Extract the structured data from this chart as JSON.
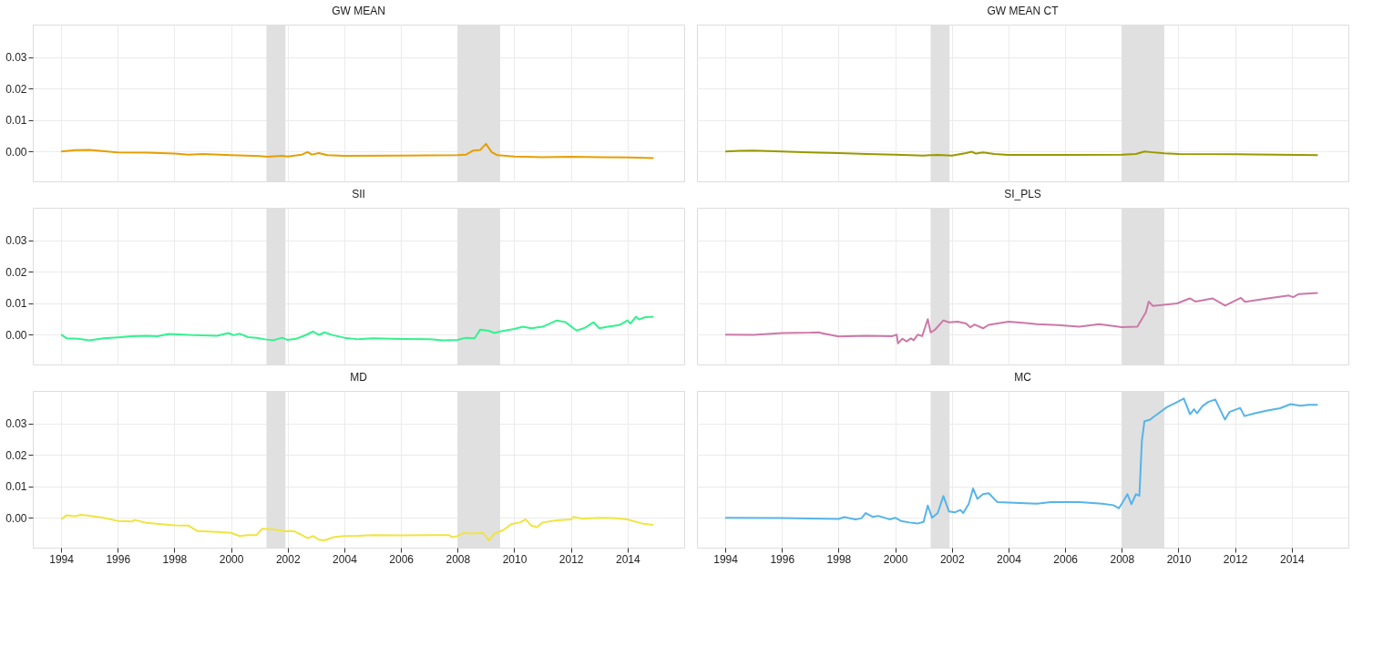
{
  "chart_data": [
    {
      "type": "line",
      "title": "GW MEAN",
      "xlim": [
        1993,
        2016
      ],
      "ylim": [
        -0.0095,
        0.0403
      ],
      "xticks": [
        1994,
        1996,
        1998,
        2000,
        2002,
        2004,
        2006,
        2008,
        2010,
        2012,
        2014
      ],
      "yticks": [
        {
          "value": 0,
          "label": "0.00"
        },
        {
          "value": 0.01,
          "label": "0.01"
        },
        {
          "value": 0.02,
          "label": "0.02"
        },
        {
          "value": 0.03,
          "label": "0.03"
        }
      ],
      "grid": true,
      "tick_labels": "y",
      "bands": [
        {
          "axis": "x",
          "from": 2001.25,
          "to": 2001.92,
          "color": "#e0e0e0"
        },
        {
          "axis": "x",
          "from": 2008.0,
          "to": 2009.5,
          "color": "#e0e0e0"
        }
      ],
      "x": [
        1994,
        1994.5,
        1995,
        1996,
        1997,
        1998,
        1998.5,
        1999,
        2000,
        2001,
        2001.3,
        2001.8,
        2002,
        2002.5,
        2002.7,
        2002.85,
        2003.1,
        2003.4,
        2004,
        2006,
        2008,
        2008.3,
        2008.55,
        2008.8,
        2009.0,
        2009.2,
        2009.4,
        2010,
        2011,
        2012,
        2013,
        2014,
        2014.92
      ],
      "series": [
        {
          "color": "#e69f00",
          "values": [
            0,
            0.0004,
            0.0005,
            -0.0003,
            -0.0004,
            -0.0007,
            -0.001,
            -0.0008,
            -0.0012,
            -0.0015,
            -0.0017,
            -0.0014,
            -0.0016,
            -0.001,
            -0.0002,
            -0.001,
            -0.0005,
            -0.0012,
            -0.0014,
            -0.0013,
            -0.0012,
            -0.001,
            0.0003,
            0.0005,
            0.0024,
            -0.0002,
            -0.0012,
            -0.0016,
            -0.0018,
            -0.0017,
            -0.0018,
            -0.0019,
            -0.0021
          ]
        }
      ]
    },
    {
      "type": "line",
      "title": "GW MEAN CT",
      "xlim": [
        1993,
        2016
      ],
      "ylim": [
        -0.0095,
        0.0403
      ],
      "xticks": [
        1994,
        1996,
        1998,
        2000,
        2002,
        2004,
        2006,
        2008,
        2010,
        2012,
        2014
      ],
      "yticks": [
        {
          "value": 0,
          "label": null
        },
        {
          "value": 0.01,
          "label": null
        },
        {
          "value": 0.02,
          "label": null
        },
        {
          "value": 0.03,
          "label": null
        }
      ],
      "grid": true,
      "tick_labels": false,
      "bands": [
        {
          "axis": "x",
          "from": 2001.25,
          "to": 2001.92,
          "color": "#e0e0e0"
        },
        {
          "axis": "x",
          "from": 2008.0,
          "to": 2009.5,
          "color": "#e0e0e0"
        }
      ],
      "x": [
        1994,
        1994.5,
        1995,
        1996,
        1997,
        1998,
        1999,
        2000,
        2001,
        2001.5,
        2002,
        2002.5,
        2002.7,
        2002.85,
        2003.1,
        2003.5,
        2004,
        2006,
        2008,
        2008.5,
        2008.8,
        2009.0,
        2009.5,
        2010,
        2012,
        2014.92
      ],
      "series": [
        {
          "color": "#999900",
          "values": [
            0,
            0.0002,
            0.0003,
            0,
            -0.0003,
            -0.0005,
            -0.0008,
            -0.001,
            -0.0013,
            -0.0011,
            -0.0013,
            -0.0005,
            -0.0001,
            -0.0007,
            -0.0003,
            -0.0008,
            -0.0011,
            -0.0011,
            -0.001,
            -0.0008,
            0,
            -0.0002,
            -0.0006,
            -0.0008,
            -0.0009,
            -0.0012
          ]
        }
      ]
    },
    {
      "type": "line",
      "title": "SII",
      "xlim": [
        1993,
        2016
      ],
      "ylim": [
        -0.0095,
        0.0403
      ],
      "xticks": [
        1994,
        1996,
        1998,
        2000,
        2002,
        2004,
        2006,
        2008,
        2010,
        2012,
        2014
      ],
      "yticks": [
        {
          "value": 0,
          "label": "0.00"
        },
        {
          "value": 0.01,
          "label": "0.01"
        },
        {
          "value": 0.02,
          "label": "0.02"
        },
        {
          "value": 0.03,
          "label": "0.03"
        }
      ],
      "grid": true,
      "tick_labels": "y",
      "bands": [
        {
          "axis": "x",
          "from": 2001.25,
          "to": 2001.92,
          "color": "#e0e0e0"
        },
        {
          "axis": "x",
          "from": 2008.0,
          "to": 2009.5,
          "color": "#e0e0e0"
        }
      ],
      "x": [
        1994,
        1994.2,
        1994.6,
        1995,
        1995.5,
        1996,
        1996.5,
        1997,
        1997.4,
        1997.8,
        1998.5,
        1999,
        1999.5,
        1999.9,
        2000.1,
        2000.3,
        2000.6,
        2000.9,
        2001.2,
        2001.5,
        2001.8,
        2002.0,
        2002.3,
        2002.6,
        2002.9,
        2003.1,
        2003.3,
        2003.6,
        2004,
        2004.5,
        2005,
        2006,
        2007,
        2007.5,
        2008,
        2008.3,
        2008.6,
        2008.8,
        2009.1,
        2009.3,
        2009.5,
        2010,
        2010.3,
        2010.6,
        2011,
        2011.5,
        2011.8,
        2012.2,
        2012.5,
        2012.8,
        2013.0,
        2013.3,
        2013.7,
        2014,
        2014.1,
        2014.3,
        2014.4,
        2014.6,
        2014.92
      ],
      "series": [
        {
          "color": "#33f28f",
          "values": [
            0,
            -0.0012,
            -0.0013,
            -0.0018,
            -0.0012,
            -0.0009,
            -0.0005,
            -0.0004,
            -0.0005,
            0.0002,
            -0.0001,
            -0.0002,
            -0.0004,
            0.0005,
            -0.0002,
            0.0003,
            -0.0008,
            -0.001,
            -0.0015,
            -0.0018,
            -0.001,
            -0.0017,
            -0.0013,
            -0.0003,
            0.001,
            -0.0001,
            0.0007,
            -0.0002,
            -0.001,
            -0.0015,
            -0.0012,
            -0.0014,
            -0.0015,
            -0.0018,
            -0.0017,
            -0.001,
            -0.0012,
            0.0016,
            0.0012,
            0.0005,
            0.001,
            0.0018,
            0.0025,
            0.002,
            0.0025,
            0.0045,
            0.004,
            0.0013,
            0.0022,
            0.0039,
            0.002,
            0.0025,
            0.003,
            0.0045,
            0.0035,
            0.0057,
            0.0048,
            0.0055,
            0.0057
          ]
        }
      ]
    },
    {
      "type": "line",
      "title": "SI_PLS",
      "xlim": [
        1993,
        2016
      ],
      "ylim": [
        -0.0095,
        0.0403
      ],
      "xticks": [
        1994,
        1996,
        1998,
        2000,
        2002,
        2004,
        2006,
        2008,
        2010,
        2012,
        2014
      ],
      "yticks": [
        {
          "value": 0,
          "label": null
        },
        {
          "value": 0.01,
          "label": null
        },
        {
          "value": 0.02,
          "label": null
        },
        {
          "value": 0.03,
          "label": null
        }
      ],
      "grid": true,
      "tick_labels": false,
      "bands": [
        {
          "axis": "x",
          "from": 2001.25,
          "to": 2001.92,
          "color": "#e0e0e0"
        },
        {
          "axis": "x",
          "from": 2008.0,
          "to": 2009.5,
          "color": "#e0e0e0"
        }
      ],
      "x": [
        1994,
        1995,
        1996,
        1997,
        1997.3,
        1997.5,
        1998,
        1999,
        1999.9,
        2000.05,
        2000.1,
        2000.25,
        2000.4,
        2000.55,
        2000.65,
        2000.8,
        2000.95,
        2001.15,
        2001.25,
        2001.4,
        2001.7,
        2001.9,
        2002.2,
        2002.5,
        2002.65,
        2002.8,
        2003.1,
        2003.3,
        2004,
        2004.6,
        2005.0,
        2005.75,
        2006.5,
        2007.2,
        2008,
        2008.55,
        2008.85,
        2008.95,
        2009.1,
        2009.95,
        2010.4,
        2010.6,
        2011.2,
        2011.65,
        2012.2,
        2012.35,
        2013.15,
        2013.9,
        2014.05,
        2014.25,
        2014.92
      ],
      "series": [
        {
          "color": "#cc79a7",
          "values": [
            0,
            -0.0001,
            0.0005,
            0.0006,
            0.0007,
            0.0003,
            -0.0006,
            -0.0004,
            -0.0005,
            0,
            -0.0028,
            -0.0013,
            -0.0022,
            -0.0012,
            -0.0018,
            0,
            -0.0005,
            0.0049,
            0.0007,
            0.0015,
            0.0045,
            0.0039,
            0.0041,
            0.0035,
            0.0023,
            0.0032,
            0.002,
            0.0031,
            0.0041,
            0.0037,
            0.0033,
            0.003,
            0.0025,
            0.0033,
            0.0024,
            0.0025,
            0.0071,
            0.0105,
            0.0091,
            0.0099,
            0.0115,
            0.0105,
            0.0115,
            0.0092,
            0.0117,
            0.0104,
            0.0115,
            0.0124,
            0.0119,
            0.0129,
            0.0132
          ]
        }
      ]
    },
    {
      "type": "line",
      "title": "MD",
      "xlim": [
        1993,
        2016
      ],
      "ylim": [
        -0.0095,
        0.0403
      ],
      "xticks": [
        1994,
        1996,
        1998,
        2000,
        2002,
        2004,
        2006,
        2008,
        2010,
        2012,
        2014
      ],
      "yticks": [
        {
          "value": 0,
          "label": "0.00"
        },
        {
          "value": 0.01,
          "label": "0.01"
        },
        {
          "value": 0.02,
          "label": "0.02"
        },
        {
          "value": 0.03,
          "label": "0.03"
        }
      ],
      "grid": true,
      "bands": [
        {
          "axis": "x",
          "from": 2001.25,
          "to": 2001.92,
          "color": "#e0e0e0"
        },
        {
          "axis": "x",
          "from": 2008.0,
          "to": 2009.5,
          "color": "#e0e0e0"
        }
      ],
      "x": [
        1994,
        1994.2,
        1994.5,
        1994.7,
        1995,
        1995.5,
        1996,
        1996.5,
        1996.6,
        1997,
        1998,
        1998.5,
        1998.8,
        1999.5,
        2000,
        2000.3,
        2000.6,
        2000.9,
        2001.1,
        2001.5,
        2001.9,
        2002.2,
        2002.5,
        2002.7,
        2002.9,
        2003.1,
        2003.3,
        2003.6,
        2004,
        2004.5,
        2005,
        2006,
        2007,
        2007.7,
        2007.8,
        2008,
        2008.2,
        2008.5,
        2008.9,
        2009.1,
        2009.3,
        2009.6,
        2009.9,
        2010.2,
        2010.4,
        2010.6,
        2010.8,
        2011,
        2011.5,
        2012,
        2012.1,
        2012.4,
        2013,
        2013.5,
        2014,
        2014.5,
        2014.92
      ],
      "series": [
        {
          "color": "#f0e442",
          "values": [
            -0.0005,
            0.0008,
            0.0005,
            0.0009,
            0.0006,
            0,
            -0.001,
            -0.0012,
            -0.0007,
            -0.0016,
            -0.0024,
            -0.0025,
            -0.0042,
            -0.0045,
            -0.0048,
            -0.0058,
            -0.0055,
            -0.0055,
            -0.0035,
            -0.0037,
            -0.0043,
            -0.0042,
            -0.0055,
            -0.0065,
            -0.0058,
            -0.007,
            -0.0072,
            -0.0062,
            -0.0058,
            -0.0057,
            -0.0055,
            -0.0056,
            -0.0055,
            -0.0055,
            -0.0062,
            -0.0058,
            -0.0048,
            -0.005,
            -0.0048,
            -0.0072,
            -0.005,
            -0.004,
            -0.002,
            -0.0015,
            -0.0005,
            -0.0025,
            -0.003,
            -0.0015,
            -0.0008,
            -0.0005,
            0.0003,
            -0.0003,
            0,
            -0.0001,
            -0.0005,
            -0.0018,
            -0.0023
          ]
        }
      ]
    },
    {
      "type": "line",
      "title": "MC",
      "xlim": [
        1993,
        2016
      ],
      "ylim": [
        -0.0095,
        0.0403
      ],
      "xticks": [
        1994,
        1996,
        1998,
        2000,
        2002,
        2004,
        2006,
        2008,
        2010,
        2012,
        2014
      ],
      "yticks": [
        {
          "value": 0,
          "label": null
        },
        {
          "value": 0.01,
          "label": null
        },
        {
          "value": 0.02,
          "label": null
        },
        {
          "value": 0.03,
          "label": null
        }
      ],
      "grid": true,
      "tick_labels": "x",
      "bands": [
        {
          "axis": "x",
          "from": 2001.25,
          "to": 2001.92,
          "color": "#e0e0e0"
        },
        {
          "axis": "x",
          "from": 2008.0,
          "to": 2009.5,
          "color": "#e0e0e0"
        }
      ],
      "x": [
        1994,
        1996,
        1997,
        1997.5,
        1998,
        1998.2,
        1998.6,
        1998.8,
        1998.96,
        1999.2,
        1999.4,
        1999.8,
        2000,
        2000.2,
        2000.5,
        2000.8,
        2001.0,
        2001.15,
        2001.3,
        2001.5,
        2001.7,
        2001.9,
        2002.1,
        2002.3,
        2002.4,
        2002.6,
        2002.75,
        2002.9,
        2003.1,
        2003.3,
        2003.6,
        2004,
        2005,
        2005.5,
        2006.5,
        2007.3,
        2007.7,
        2007.9,
        2008.0,
        2008.2,
        2008.34,
        2008.5,
        2008.62,
        2008.71,
        2008.8,
        2008.86,
        2009.0,
        2009.1,
        2009.3,
        2009.6,
        2009.9,
        2010.19,
        2010.41,
        2010.55,
        2010.65,
        2010.85,
        2011.05,
        2011.3,
        2011.64,
        2011.8,
        2012.18,
        2012.33,
        2012.7,
        2013.14,
        2013.59,
        2013.96,
        2014.3,
        2014.6,
        2014.92
      ],
      "series": [
        {
          "color": "#56b4e9",
          "values": [
            0,
            -0.0001,
            -0.0002,
            -0.0003,
            -0.0004,
            0.0002,
            -0.0005,
            -0.0002,
            0.0015,
            0.0003,
            0.0006,
            -0.0005,
            0,
            -0.001,
            -0.0015,
            -0.0018,
            -0.0013,
            0.0039,
            0,
            0.0015,
            0.0069,
            0.002,
            0.0017,
            0.0025,
            0.0015,
            0.0045,
            0.0093,
            0.006,
            0.0075,
            0.0078,
            0.005,
            0.0048,
            0.0045,
            0.005,
            0.005,
            0.0045,
            0.004,
            0.003,
            0.0045,
            0.0075,
            0.0043,
            0.0075,
            0.007,
            0.0245,
            0.0307,
            0.0308,
            0.0312,
            0.0319,
            0.0332,
            0.0352,
            0.0365,
            0.0379,
            0.0329,
            0.0345,
            0.0332,
            0.0355,
            0.0368,
            0.0376,
            0.0312,
            0.0336,
            0.0349,
            0.0323,
            0.0332,
            0.0341,
            0.0348,
            0.0361,
            0.0356,
            0.0359,
            0.0359
          ]
        }
      ]
    }
  ]
}
